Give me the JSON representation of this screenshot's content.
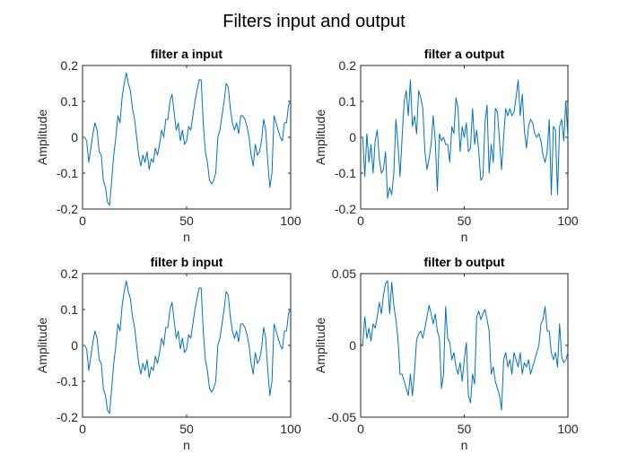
{
  "figure": {
    "title": "Filters input and output"
  },
  "colors": {
    "line": "#0072BD",
    "axis": "#262626"
  },
  "chart_data": [
    {
      "type": "line",
      "id": "a_in",
      "title": "filter a input",
      "xlabel": "n",
      "ylabel": "Amplitude",
      "xlim": [
        0,
        100
      ],
      "ylim": [
        -0.2,
        0.2
      ],
      "xticks": [
        0,
        50,
        100
      ],
      "yticks": [
        -0.2,
        -0.1,
        0,
        0.1,
        0.2
      ],
      "xtick_labels": [
        "0",
        "50",
        "100"
      ],
      "ytick_labels": [
        "-0.2",
        "-0.1",
        "0",
        "0.1",
        "0.2"
      ],
      "series": [
        {
          "x": [
            0,
            1,
            2,
            3,
            4,
            5,
            6,
            7,
            8,
            9,
            10,
            11,
            12,
            13,
            14,
            15,
            16,
            17,
            18,
            19,
            20,
            21,
            22,
            23,
            24,
            25,
            26,
            27,
            28,
            29,
            30,
            31,
            32,
            33,
            34,
            35,
            36,
            37,
            38,
            39,
            40,
            41,
            42,
            43,
            44,
            45,
            46,
            47,
            48,
            49,
            50,
            51,
            52,
            53,
            54,
            55,
            56,
            57,
            58,
            59,
            60,
            61,
            62,
            63,
            64,
            65,
            66,
            67,
            68,
            69,
            70,
            71,
            72,
            73,
            74,
            75,
            76,
            77,
            78,
            79,
            80,
            81,
            82,
            83,
            84,
            85,
            86,
            87,
            88,
            89,
            90,
            91,
            92,
            93,
            94,
            95,
            96,
            97,
            98,
            99,
            100
          ],
          "values": [
            0,
            0,
            -0.01,
            -0.07,
            -0.03,
            0.01,
            0.04,
            0.02,
            -0.04,
            -0.05,
            -0.12,
            -0.14,
            -0.18,
            -0.19,
            -0.12,
            -0.05,
            0,
            0.06,
            0.04,
            0.11,
            0.15,
            0.18,
            0.15,
            0.13,
            0.08,
            0.05,
            0,
            -0.05,
            -0.08,
            -0.05,
            -0.07,
            -0.04,
            -0.09,
            -0.06,
            -0.07,
            -0.03,
            -0.05,
            -0.02,
            0.02,
            0,
            0.05,
            0.05,
            0.1,
            0.12,
            0.07,
            0.02,
            0.04,
            -0.01,
            0.02,
            -0.02,
            -0.01,
            0.03,
            0.02,
            0.06,
            0.1,
            0.13,
            0.16,
            0.16,
            0.04,
            -0.04,
            -0.07,
            -0.12,
            -0.13,
            -0.12,
            -0.1,
            0,
            0.02,
            0.06,
            0.1,
            0.15,
            0.14,
            0.08,
            0.04,
            0.02,
            0.04,
            0.01,
            0.06,
            0.06,
            0.05,
            0.03,
            0,
            -0.05,
            -0.08,
            -0.02,
            -0.05,
            -0.04,
            -0.01,
            0.05,
            0.02,
            -0.07,
            -0.14,
            -0.1,
            0.06,
            0.04,
            0.02,
            0,
            -0.01,
            0.04,
            0.04,
            0.09,
            0.1
          ]
        }
      ]
    },
    {
      "type": "line",
      "id": "a_out",
      "title": "filter a output",
      "xlabel": "n",
      "ylabel": "Amplitude",
      "xlim": [
        0,
        100
      ],
      "ylim": [
        -0.2,
        0.2
      ],
      "xticks": [
        0,
        50,
        100
      ],
      "yticks": [
        -0.2,
        -0.1,
        0,
        0.1,
        0.2
      ],
      "xtick_labels": [
        "0",
        "50",
        "100"
      ],
      "ytick_labels": [
        "-0.2",
        "-0.1",
        "0",
        "0.1",
        "0.2"
      ],
      "series": [
        {
          "x": [
            0,
            1,
            2,
            3,
            4,
            5,
            6,
            7,
            8,
            9,
            10,
            11,
            12,
            13,
            14,
            15,
            16,
            17,
            18,
            19,
            20,
            21,
            22,
            23,
            24,
            25,
            26,
            27,
            28,
            29,
            30,
            31,
            32,
            33,
            34,
            35,
            36,
            37,
            38,
            39,
            40,
            41,
            42,
            43,
            44,
            45,
            46,
            47,
            48,
            49,
            50,
            51,
            52,
            53,
            54,
            55,
            56,
            57,
            58,
            59,
            60,
            61,
            62,
            63,
            64,
            65,
            66,
            67,
            68,
            69,
            70,
            71,
            72,
            73,
            74,
            75,
            76,
            77,
            78,
            79,
            80,
            81,
            82,
            83,
            84,
            85,
            86,
            87,
            88,
            89,
            90,
            91,
            92,
            93,
            94,
            95,
            96,
            97,
            98,
            99,
            100
          ],
          "values": [
            0,
            0,
            -0.11,
            0.01,
            -0.07,
            -0.02,
            -0.1,
            -0.01,
            0.02,
            -0.06,
            -0.1,
            -0.09,
            -0.04,
            -0.17,
            -0.14,
            -0.16,
            -0.1,
            0.05,
            -0.02,
            -0.11,
            0,
            0.1,
            0.13,
            0.06,
            0.16,
            0.03,
            0.06,
            0.01,
            0.13,
            0.11,
            0.08,
            -0.04,
            -0.09,
            -0.06,
            -0.02,
            0.06,
            -0.01,
            -0.15,
            0.01,
            -0.01,
            0,
            -0.02,
            -0.02,
            -0.07,
            0.03,
            0.01,
            0.11,
            0.08,
            -0.04,
            0.03,
            0,
            0.04,
            -0.04,
            -0.03,
            0.08,
            -0.02,
            0.02,
            -0.04,
            -0.12,
            -0.11,
            0.04,
            0.09,
            -0.1,
            -0.02,
            -0.07,
            0.08,
            0.07,
            -0.01,
            -0.09,
            0,
            0.08,
            0.06,
            0.08,
            0.06,
            0.07,
            0.11,
            0.16,
            0.06,
            0.12,
            0.02,
            -0.03,
            0.03,
            0.05,
            0.04,
            0.01,
            0,
            0.01,
            -0.01,
            -0.05,
            -0.07,
            -0.04,
            0.05,
            -0.16,
            0.03,
            0.02,
            -0.16,
            0.03,
            0.05,
            -0.01,
            0.1,
            0
          ]
        }
      ]
    },
    {
      "type": "line",
      "id": "b_in",
      "title": "filter b input",
      "xlabel": "n",
      "ylabel": "Amplitude",
      "xlim": [
        0,
        100
      ],
      "ylim": [
        -0.2,
        0.2
      ],
      "xticks": [
        0,
        50,
        100
      ],
      "yticks": [
        -0.2,
        -0.1,
        0,
        0.1,
        0.2
      ],
      "xtick_labels": [
        "0",
        "50",
        "100"
      ],
      "ytick_labels": [
        "-0.2",
        "-0.1",
        "0",
        "0.1",
        "0.2"
      ],
      "series": [
        {
          "x": [
            0,
            1,
            2,
            3,
            4,
            5,
            6,
            7,
            8,
            9,
            10,
            11,
            12,
            13,
            14,
            15,
            16,
            17,
            18,
            19,
            20,
            21,
            22,
            23,
            24,
            25,
            26,
            27,
            28,
            29,
            30,
            31,
            32,
            33,
            34,
            35,
            36,
            37,
            38,
            39,
            40,
            41,
            42,
            43,
            44,
            45,
            46,
            47,
            48,
            49,
            50,
            51,
            52,
            53,
            54,
            55,
            56,
            57,
            58,
            59,
            60,
            61,
            62,
            63,
            64,
            65,
            66,
            67,
            68,
            69,
            70,
            71,
            72,
            73,
            74,
            75,
            76,
            77,
            78,
            79,
            80,
            81,
            82,
            83,
            84,
            85,
            86,
            87,
            88,
            89,
            90,
            91,
            92,
            93,
            94,
            95,
            96,
            97,
            98,
            99,
            100
          ],
          "values": [
            0,
            0,
            -0.01,
            -0.07,
            -0.03,
            0.01,
            0.04,
            0.02,
            -0.04,
            -0.05,
            -0.12,
            -0.14,
            -0.18,
            -0.19,
            -0.12,
            -0.05,
            0,
            0.06,
            0.04,
            0.11,
            0.15,
            0.18,
            0.15,
            0.13,
            0.08,
            0.05,
            0,
            -0.05,
            -0.08,
            -0.05,
            -0.07,
            -0.04,
            -0.09,
            -0.06,
            -0.07,
            -0.03,
            -0.05,
            -0.02,
            0.02,
            0,
            0.05,
            0.05,
            0.1,
            0.12,
            0.07,
            0.02,
            0.04,
            -0.01,
            0.02,
            -0.02,
            -0.01,
            0.03,
            0.02,
            0.06,
            0.1,
            0.13,
            0.16,
            0.16,
            0.04,
            -0.04,
            -0.07,
            -0.12,
            -0.13,
            -0.12,
            -0.1,
            0,
            0.02,
            0.06,
            0.1,
            0.15,
            0.14,
            0.08,
            0.04,
            0.02,
            0.04,
            0.01,
            0.06,
            0.06,
            0.05,
            0.03,
            0,
            -0.05,
            -0.08,
            -0.02,
            -0.05,
            -0.04,
            -0.01,
            0.05,
            0.02,
            -0.07,
            -0.14,
            -0.1,
            0.06,
            0.04,
            0.02,
            0,
            -0.01,
            0.04,
            0.04,
            0.09,
            0.1
          ]
        }
      ]
    },
    {
      "type": "line",
      "id": "b_out",
      "title": "filter b output",
      "xlabel": "n",
      "ylabel": "Amplitude",
      "xlim": [
        0,
        100
      ],
      "ylim": [
        -0.05,
        0.05
      ],
      "xticks": [
        0,
        50,
        100
      ],
      "yticks": [
        -0.05,
        0,
        0.05
      ],
      "xtick_labels": [
        "0",
        "50",
        "100"
      ],
      "ytick_labels": [
        "-0.05",
        "0",
        "0.05"
      ],
      "series": [
        {
          "x": [
            0,
            1,
            2,
            3,
            4,
            5,
            6,
            7,
            8,
            9,
            10,
            11,
            12,
            13,
            14,
            15,
            16,
            17,
            18,
            19,
            20,
            21,
            22,
            23,
            24,
            25,
            26,
            27,
            28,
            29,
            30,
            31,
            32,
            33,
            34,
            35,
            36,
            37,
            38,
            39,
            40,
            41,
            42,
            43,
            44,
            45,
            46,
            47,
            48,
            49,
            50,
            51,
            52,
            53,
            54,
            55,
            56,
            57,
            58,
            59,
            60,
            61,
            62,
            63,
            64,
            65,
            66,
            67,
            68,
            69,
            70,
            71,
            72,
            73,
            74,
            75,
            76,
            77,
            78,
            79,
            80,
            81,
            82,
            83,
            84,
            85,
            86,
            87,
            88,
            89,
            90,
            91,
            92,
            93,
            94,
            95,
            96,
            97,
            98,
            99,
            100
          ],
          "values": [
            0,
            0.001,
            0.02,
            0.005,
            0.012,
            0.003,
            0.015,
            0.012,
            0.02,
            0.03,
            0.022,
            0.035,
            0.043,
            0.045,
            0.022,
            0.044,
            0.028,
            0.018,
            0.005,
            -0.02,
            -0.02,
            -0.025,
            -0.03,
            -0.035,
            -0.02,
            -0.035,
            -0.018,
            0.004,
            0.008,
            0.01,
            0.005,
            0.012,
            0.02,
            0.028,
            0.022,
            0.015,
            0.022,
            0.01,
            0.005,
            -0.03,
            -0.02,
            0.027,
            0.005,
            0.002,
            -0.01,
            -0.005,
            -0.015,
            -0.02,
            -0.012,
            -0.025,
            -0.01,
            0.002,
            -0.035,
            -0.04,
            -0.02,
            -0.027,
            0.02,
            0.024,
            0.018,
            0.022,
            0.025,
            0.018,
            0.01,
            -0.02,
            -0.015,
            -0.025,
            -0.03,
            -0.035,
            -0.045,
            -0.01,
            -0.005,
            -0.015,
            -0.01,
            -0.02,
            -0.005,
            -0.01,
            -0.015,
            -0.005,
            -0.02,
            -0.012,
            -0.015,
            -0.01,
            -0.02,
            -0.015,
            -0.01,
            -0.005,
            0,
            0.015,
            0.018,
            0.027,
            0.01,
            0.01,
            -0.005,
            -0.01,
            -0.005,
            -0.015,
            0.015,
            -0.008,
            -0.012,
            -0.01,
            -0.005
          ]
        }
      ]
    }
  ]
}
